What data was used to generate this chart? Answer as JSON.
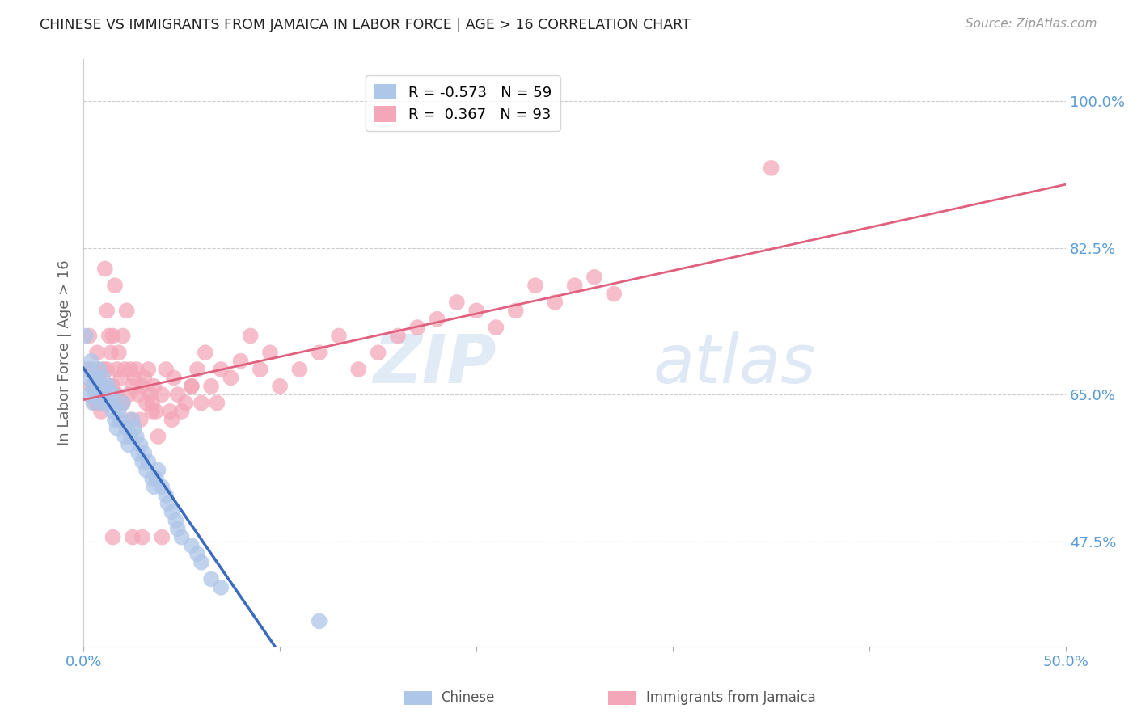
{
  "title": "CHINESE VS IMMIGRANTS FROM JAMAICA IN LABOR FORCE | AGE > 16 CORRELATION CHART",
  "source": "Source: ZipAtlas.com",
  "ylabel": "In Labor Force | Age > 16",
  "x_min": 0.0,
  "x_max": 0.5,
  "y_min": 0.35,
  "y_max": 1.05,
  "x_ticks": [
    0.0,
    0.1,
    0.2,
    0.3,
    0.4,
    0.5
  ],
  "x_tick_labels": [
    "0.0%",
    "",
    "",
    "",
    "",
    "50.0%"
  ],
  "y_tick_labels_right": [
    "47.5%",
    "65.0%",
    "82.5%",
    "100.0%"
  ],
  "y_ticks_right": [
    0.475,
    0.65,
    0.825,
    1.0
  ],
  "chinese_color": "#aec6e8",
  "chinese_line_color": "#3a6bbf",
  "jamaica_color": "#f4a7b9",
  "jamaica_line_color": "#e0607e",
  "dashed_line_color": "#bbbbbb",
  "watermark": "ZIPatlas",
  "axis_color": "#5b9bd5",
  "grid_color": "#cccccc",
  "chinese_R": -0.573,
  "chinese_N": 59,
  "jamaica_R": 0.367,
  "jamaica_N": 93,
  "legend_label_chinese": "R = -0.573   N = 59",
  "legend_label_jamaica": "R =  0.367   N = 93",
  "bottom_label_chinese": "Chinese",
  "bottom_label_jamaica": "Immigrants from Jamaica",
  "chinese_scatter": {
    "x": [
      0.001,
      0.002,
      0.003,
      0.003,
      0.004,
      0.005,
      0.005,
      0.006,
      0.006,
      0.007,
      0.007,
      0.008,
      0.008,
      0.009,
      0.009,
      0.01,
      0.01,
      0.011,
      0.012,
      0.013,
      0.013,
      0.014,
      0.015,
      0.015,
      0.016,
      0.017,
      0.018,
      0.019,
      0.02,
      0.021,
      0.022,
      0.023,
      0.024,
      0.025,
      0.026,
      0.027,
      0.028,
      0.029,
      0.03,
      0.031,
      0.032,
      0.033,
      0.035,
      0.036,
      0.037,
      0.038,
      0.04,
      0.042,
      0.043,
      0.045,
      0.047,
      0.048,
      0.05,
      0.055,
      0.058,
      0.06,
      0.065,
      0.07,
      0.12
    ],
    "y": [
      0.72,
      0.67,
      0.68,
      0.65,
      0.69,
      0.66,
      0.64,
      0.67,
      0.65,
      0.66,
      0.67,
      0.65,
      0.68,
      0.64,
      0.66,
      0.65,
      0.67,
      0.66,
      0.64,
      0.65,
      0.66,
      0.64,
      0.63,
      0.65,
      0.62,
      0.61,
      0.63,
      0.62,
      0.64,
      0.6,
      0.61,
      0.59,
      0.6,
      0.62,
      0.61,
      0.6,
      0.58,
      0.59,
      0.57,
      0.58,
      0.56,
      0.57,
      0.55,
      0.54,
      0.55,
      0.56,
      0.54,
      0.53,
      0.52,
      0.51,
      0.5,
      0.49,
      0.48,
      0.47,
      0.46,
      0.45,
      0.43,
      0.42,
      0.38
    ]
  },
  "jamaica_scatter": {
    "x": [
      0.002,
      0.003,
      0.004,
      0.005,
      0.006,
      0.007,
      0.007,
      0.008,
      0.009,
      0.01,
      0.01,
      0.011,
      0.012,
      0.012,
      0.013,
      0.013,
      0.014,
      0.015,
      0.015,
      0.016,
      0.017,
      0.017,
      0.018,
      0.019,
      0.02,
      0.02,
      0.021,
      0.022,
      0.023,
      0.024,
      0.024,
      0.025,
      0.026,
      0.027,
      0.028,
      0.029,
      0.03,
      0.031,
      0.032,
      0.033,
      0.034,
      0.035,
      0.036,
      0.037,
      0.038,
      0.04,
      0.042,
      0.044,
      0.046,
      0.048,
      0.05,
      0.052,
      0.055,
      0.058,
      0.06,
      0.062,
      0.065,
      0.068,
      0.07,
      0.075,
      0.08,
      0.085,
      0.09,
      0.095,
      0.1,
      0.11,
      0.12,
      0.13,
      0.14,
      0.15,
      0.16,
      0.17,
      0.18,
      0.19,
      0.2,
      0.21,
      0.22,
      0.23,
      0.24,
      0.25,
      0.26,
      0.27,
      0.055,
      0.04,
      0.025,
      0.015,
      0.008,
      0.006,
      0.02,
      0.03,
      0.035,
      0.045,
      0.35
    ],
    "y": [
      0.68,
      0.72,
      0.66,
      0.68,
      0.66,
      0.7,
      0.64,
      0.67,
      0.63,
      0.68,
      0.66,
      0.8,
      0.68,
      0.75,
      0.72,
      0.66,
      0.7,
      0.72,
      0.66,
      0.78,
      0.68,
      0.65,
      0.7,
      0.67,
      0.72,
      0.64,
      0.68,
      0.75,
      0.65,
      0.68,
      0.62,
      0.66,
      0.67,
      0.68,
      0.65,
      0.62,
      0.66,
      0.67,
      0.64,
      0.68,
      0.65,
      0.64,
      0.66,
      0.63,
      0.6,
      0.65,
      0.68,
      0.63,
      0.67,
      0.65,
      0.63,
      0.64,
      0.66,
      0.68,
      0.64,
      0.7,
      0.66,
      0.64,
      0.68,
      0.67,
      0.69,
      0.72,
      0.68,
      0.7,
      0.66,
      0.68,
      0.7,
      0.72,
      0.68,
      0.7,
      0.72,
      0.73,
      0.74,
      0.76,
      0.75,
      0.73,
      0.75,
      0.78,
      0.76,
      0.78,
      0.79,
      0.77,
      0.66,
      0.48,
      0.48,
      0.48,
      0.65,
      0.64,
      0.64,
      0.48,
      0.63,
      0.62,
      0.92
    ]
  }
}
